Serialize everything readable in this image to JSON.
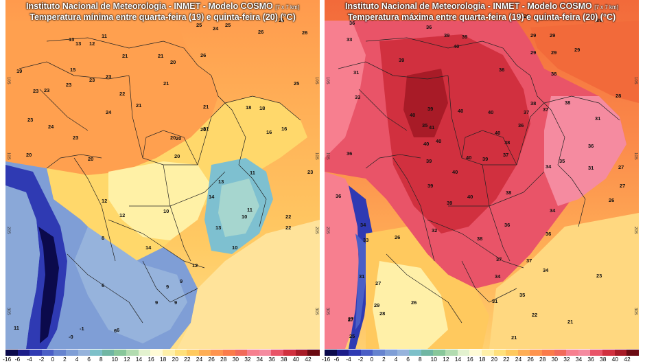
{
  "panels": [
    {
      "id": "min",
      "title_line1": "Instituto Nacional de Meteorologia - INMET - Modelo COSMO",
      "resolution": "[7 x 7 km]",
      "title_line2": "Temperatura mínima entre quarta-feira (19) e quinta-feira (20) (°C)",
      "lat_labels": [
        "10S",
        "20S",
        "30S"
      ],
      "values": [
        {
          "t": "13"
        },
        {
          "t": "11"
        },
        {
          "t": "13"
        },
        {
          "t": "12"
        },
        {
          "t": "25"
        },
        {
          "t": "24"
        },
        {
          "t": "25"
        },
        {
          "t": "26"
        },
        {
          "t": "26"
        },
        {
          "t": "26"
        },
        {
          "t": "21"
        },
        {
          "t": "15"
        },
        {
          "t": "21"
        },
        {
          "t": "20"
        },
        {
          "t": "26"
        },
        {
          "t": "19"
        },
        {
          "t": "23"
        },
        {
          "t": "23"
        },
        {
          "t": "21"
        },
        {
          "t": "25"
        },
        {
          "t": "23"
        },
        {
          "t": "23"
        },
        {
          "t": "22"
        },
        {
          "t": "23"
        },
        {
          "t": "21"
        },
        {
          "t": "21"
        },
        {
          "t": "18"
        },
        {
          "t": "18"
        },
        {
          "t": "23"
        },
        {
          "t": "24"
        },
        {
          "t": "21"
        },
        {
          "t": "20"
        },
        {
          "t": "24"
        },
        {
          "t": "20"
        },
        {
          "t": "16"
        },
        {
          "t": "16"
        },
        {
          "t": "23"
        },
        {
          "t": "23"
        },
        {
          "t": "20"
        },
        {
          "t": "20"
        },
        {
          "t": "20"
        },
        {
          "t": "20"
        },
        {
          "t": "11"
        },
        {
          "t": "23"
        },
        {
          "t": "13"
        },
        {
          "t": "12"
        },
        {
          "t": "14"
        },
        {
          "t": "12"
        },
        {
          "t": "10"
        },
        {
          "t": "11"
        },
        {
          "t": "10"
        },
        {
          "t": "22"
        },
        {
          "t": "13"
        },
        {
          "t": "22"
        },
        {
          "t": "8"
        },
        {
          "t": "14"
        },
        {
          "t": "10"
        },
        {
          "t": "12"
        },
        {
          "t": "9"
        },
        {
          "t": "9"
        },
        {
          "t": "6"
        },
        {
          "t": "9"
        },
        {
          "t": "9"
        },
        {
          "t": "6"
        },
        {
          "t": "11"
        },
        {
          "t": "-1"
        },
        {
          "t": "-0"
        },
        {
          "t": "6"
        }
      ],
      "colorbar": {
        "ticks": [
          "-16",
          "-6",
          "-4",
          "-2",
          "0",
          "2",
          "4",
          "6",
          "8",
          "10",
          "12",
          "14",
          "16",
          "18",
          "20",
          "22",
          "24",
          "26",
          "28",
          "30",
          "32",
          "34",
          "36",
          "38",
          "40",
          "42"
        ],
        "colors": [
          "#0b0a4c",
          "#1c1d8a",
          "#2f3ab3",
          "#4a5ec6",
          "#6683cf",
          "#7f9ed6",
          "#96b3dc",
          "#7dc0c9",
          "#70b6a3",
          "#88c79a",
          "#b2dcb0",
          "#e3f2cf",
          "#fffbd6",
          "#fff0a8",
          "#ffe07a",
          "#ffc95e",
          "#ffae55",
          "#ff944e",
          "#fb7b4a",
          "#f26a5a",
          "#f77f8f",
          "#f58ba0",
          "#e95468",
          "#d1303f",
          "#a81b27",
          "#6b0a12"
        ]
      }
    },
    {
      "id": "max",
      "title_line1": "Instituto Nacional de Meteorologia - INMET - Modelo COSMO",
      "resolution": "[7 x 7 km]",
      "title_line2": "Temperatura máxima entre quarta-feira (19) e quinta-feira (20) (°C)",
      "lat_labels": [
        "10S",
        "20S",
        "30S"
      ],
      "values": [
        {
          "t": "36"
        },
        {
          "t": "33"
        },
        {
          "t": "36"
        },
        {
          "t": "39"
        },
        {
          "t": "29"
        },
        {
          "t": "29"
        },
        {
          "t": "29"
        },
        {
          "t": "39"
        },
        {
          "t": "40"
        },
        {
          "t": "39"
        },
        {
          "t": "29"
        },
        {
          "t": "29"
        },
        {
          "t": "29"
        },
        {
          "t": "39"
        },
        {
          "t": "36"
        },
        {
          "t": "31"
        },
        {
          "t": "38"
        },
        {
          "t": "28"
        },
        {
          "t": "33"
        },
        {
          "t": "38"
        },
        {
          "t": "36"
        },
        {
          "t": "37"
        },
        {
          "t": "38"
        },
        {
          "t": "31"
        },
        {
          "t": "40"
        },
        {
          "t": "40"
        },
        {
          "t": "37"
        },
        {
          "t": "40"
        },
        {
          "t": "40"
        },
        {
          "t": "40"
        },
        {
          "t": "36"
        },
        {
          "t": "37"
        },
        {
          "t": "36"
        },
        {
          "t": "38"
        },
        {
          "t": "40"
        },
        {
          "t": "40"
        },
        {
          "t": "39"
        },
        {
          "t": "34"
        },
        {
          "t": "35"
        },
        {
          "t": "31"
        },
        {
          "t": "27"
        },
        {
          "t": "36"
        },
        {
          "t": "39"
        },
        {
          "t": "27"
        },
        {
          "t": "40"
        },
        {
          "t": "39"
        },
        {
          "t": "40"
        },
        {
          "t": "38"
        },
        {
          "t": "26"
        },
        {
          "t": "34"
        },
        {
          "t": "26"
        },
        {
          "t": "34"
        },
        {
          "t": "36"
        },
        {
          "t": "32"
        },
        {
          "t": "36"
        },
        {
          "t": "38"
        },
        {
          "t": "33"
        },
        {
          "t": "37"
        },
        {
          "t": "37"
        },
        {
          "t": "34"
        },
        {
          "t": "31"
        },
        {
          "t": "23"
        },
        {
          "t": "27"
        },
        {
          "t": "34"
        },
        {
          "t": "35"
        },
        {
          "t": "26"
        },
        {
          "t": "31"
        },
        {
          "t": "29"
        },
        {
          "t": "28"
        },
        {
          "t": "27"
        },
        {
          "t": "22"
        },
        {
          "t": "27"
        },
        {
          "t": "21"
        },
        {
          "t": "25"
        },
        {
          "t": "21"
        },
        {
          "t": "39"
        },
        {
          "t": "35"
        },
        {
          "t": "39"
        },
        {
          "t": "41"
        }
      ],
      "colorbar": {
        "ticks": [
          "-16",
          "-6",
          "-4",
          "-2",
          "0",
          "2",
          "4",
          "6",
          "8",
          "10",
          "12",
          "14",
          "16",
          "18",
          "20",
          "22",
          "24",
          "26",
          "28",
          "30",
          "32",
          "34",
          "36",
          "38",
          "40",
          "42"
        ],
        "colors": [
          "#0b0a4c",
          "#1c1d8a",
          "#2f3ab3",
          "#4a5ec6",
          "#6683cf",
          "#7f9ed6",
          "#96b3dc",
          "#7dc0c9",
          "#70b6a3",
          "#88c79a",
          "#b2dcb0",
          "#e3f2cf",
          "#fffbd6",
          "#fff0a8",
          "#ffe07a",
          "#ffc95e",
          "#ffae55",
          "#ff944e",
          "#fb7b4a",
          "#f26a5a",
          "#f77f8f",
          "#f58ba0",
          "#e95468",
          "#d1303f",
          "#a81b27",
          "#6b0a12"
        ]
      }
    }
  ]
}
